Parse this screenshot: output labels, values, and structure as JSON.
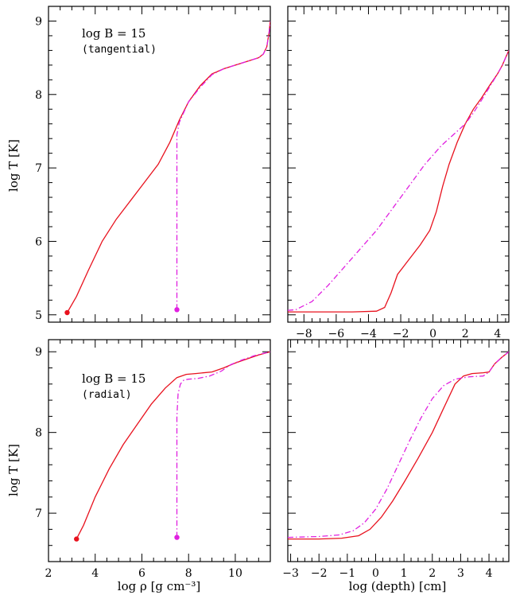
{
  "colors": {
    "solid": "#e8121e",
    "dashdot": "#e020e0",
    "frame": "#000000"
  },
  "chart_data": [
    {
      "id": "top-left",
      "type": "line",
      "xlim": [
        2,
        11.5
      ],
      "ylim": [
        4.9,
        9.2
      ],
      "xticks": [
        2,
        4,
        6,
        8,
        10
      ],
      "xticks_labelled": false,
      "yticks": [
        5,
        6,
        7,
        8,
        9
      ],
      "yticks_labelled": true,
      "ylabel": "log T [K]",
      "xlabel": "",
      "annotations": [
        "log B = 15",
        "(tangential)"
      ],
      "series": [
        {
          "style": "solid",
          "x": [
            2.8,
            3.2,
            3.7,
            4.3,
            4.9,
            5.5,
            6.1,
            6.7,
            7.2,
            7.6,
            8.0,
            8.5,
            9.0,
            9.5,
            10.0,
            10.5,
            11.0,
            11.2,
            11.35,
            11.45,
            11.5
          ],
          "y": [
            5.03,
            5.25,
            5.6,
            6.0,
            6.3,
            6.55,
            6.8,
            7.05,
            7.35,
            7.65,
            7.9,
            8.12,
            8.28,
            8.35,
            8.4,
            8.45,
            8.5,
            8.55,
            8.65,
            8.85,
            9.0
          ]
        },
        {
          "style": "dashdot",
          "x": [
            7.5,
            7.5,
            7.6,
            8.0,
            8.5,
            9.0,
            9.5,
            10.0,
            10.5,
            11.0,
            11.2,
            11.35,
            11.45,
            11.5
          ],
          "y": [
            5.07,
            7.45,
            7.62,
            7.9,
            8.1,
            8.27,
            8.35,
            8.4,
            8.45,
            8.5,
            8.55,
            8.65,
            8.85,
            9.0
          ]
        }
      ],
      "markers": [
        {
          "x": 2.8,
          "y": 5.03,
          "style": "solid"
        },
        {
          "x": 7.5,
          "y": 5.07,
          "style": "dashdot"
        }
      ]
    },
    {
      "id": "top-right",
      "type": "line",
      "xlim": [
        -9,
        4.7
      ],
      "ylim": [
        4.9,
        9.2
      ],
      "xticks": [
        -8,
        -6,
        -4,
        -2,
        0,
        2,
        4
      ],
      "xticks_labelled": true,
      "yticks": [
        5,
        6,
        7,
        8,
        9
      ],
      "yticks_labelled": false,
      "xlabel": "",
      "ylabel": "",
      "series": [
        {
          "style": "solid",
          "x": [
            -9,
            -7,
            -5,
            -3.5,
            -3.0,
            -2.6,
            -2.2,
            -1.5,
            -0.8,
            -0.2,
            0.2,
            0.6,
            1.0,
            1.5,
            2.0,
            2.5,
            3.0,
            3.5,
            4.0,
            4.3,
            4.5,
            4.7
          ],
          "y": [
            5.04,
            5.04,
            5.04,
            5.05,
            5.1,
            5.3,
            5.55,
            5.75,
            5.95,
            6.15,
            6.4,
            6.75,
            7.05,
            7.35,
            7.6,
            7.8,
            7.95,
            8.12,
            8.28,
            8.4,
            8.5,
            8.6
          ]
        },
        {
          "style": "dashdot",
          "x": [
            -9,
            -8.5,
            -7.5,
            -6.5,
            -5.5,
            -4.5,
            -3.5,
            -2.5,
            -1.5,
            -0.5,
            0.5,
            1.0,
            1.5,
            2.0,
            2.5,
            3.0,
            3.5,
            4.0,
            4.3,
            4.5,
            4.7
          ],
          "y": [
            5.06,
            5.07,
            5.18,
            5.4,
            5.65,
            5.9,
            6.15,
            6.45,
            6.75,
            7.05,
            7.3,
            7.4,
            7.5,
            7.6,
            7.75,
            7.92,
            8.1,
            8.28,
            8.4,
            8.5,
            8.6
          ]
        }
      ]
    },
    {
      "id": "bottom-left",
      "type": "line",
      "xlim": [
        2,
        11.5
      ],
      "ylim": [
        6.4,
        9.15
      ],
      "xticks": [
        2,
        4,
        6,
        8,
        10
      ],
      "xticks_labelled": true,
      "yticks": [
        7,
        8,
        9
      ],
      "yticks_labelled": true,
      "xlabel": "log ρ [g cm⁻³]",
      "ylabel": "log T [K]",
      "annotations": [
        "log B = 15",
        "(radial)"
      ],
      "series": [
        {
          "style": "solid",
          "x": [
            3.2,
            3.5,
            4.0,
            4.6,
            5.2,
            5.8,
            6.4,
            7.0,
            7.5,
            7.9,
            8.3,
            9.0,
            9.5,
            10.0,
            10.5,
            11.0,
            11.5
          ],
          "y": [
            6.68,
            6.85,
            7.2,
            7.55,
            7.85,
            8.1,
            8.35,
            8.55,
            8.68,
            8.72,
            8.73,
            8.75,
            8.8,
            8.86,
            8.91,
            8.96,
            9.0
          ]
        },
        {
          "style": "dashdot",
          "x": [
            7.5,
            7.5,
            7.55,
            7.65,
            7.8,
            8.0,
            8.4,
            8.9,
            9.4,
            9.8,
            10.3,
            10.8,
            11.2,
            11.5
          ],
          "y": [
            6.7,
            8.2,
            8.48,
            8.6,
            8.65,
            8.66,
            8.67,
            8.7,
            8.76,
            8.84,
            8.9,
            8.95,
            8.98,
            9.0
          ]
        }
      ],
      "markers": [
        {
          "x": 3.2,
          "y": 6.68,
          "style": "solid"
        },
        {
          "x": 7.5,
          "y": 6.7,
          "style": "dashdot"
        }
      ]
    },
    {
      "id": "bottom-right",
      "type": "line",
      "xlim": [
        -3.1,
        4.7
      ],
      "ylim": [
        6.4,
        9.15
      ],
      "xticks": [
        -3,
        -2,
        -1,
        0,
        1,
        2,
        3,
        4
      ],
      "xticks_labelled": true,
      "yticks": [
        7,
        8,
        9
      ],
      "yticks_labelled": false,
      "xlabel": "log (depth) [cm]",
      "ylabel": "",
      "series": [
        {
          "style": "solid",
          "x": [
            -3.1,
            -2,
            -1.2,
            -0.6,
            -0.2,
            0.2,
            0.6,
            1.0,
            1.5,
            2.0,
            2.4,
            2.8,
            3.1,
            3.4,
            3.8,
            4.0,
            4.2,
            4.45,
            4.7
          ],
          "y": [
            6.68,
            6.68,
            6.69,
            6.72,
            6.8,
            6.95,
            7.15,
            7.38,
            7.68,
            8.0,
            8.3,
            8.6,
            8.7,
            8.73,
            8.74,
            8.75,
            8.85,
            8.93,
            9.0
          ]
        },
        {
          "style": "dashdot",
          "x": [
            -3.1,
            -2,
            -1.3,
            -0.8,
            -0.4,
            0.0,
            0.4,
            0.8,
            1.2,
            1.6,
            2.0,
            2.4,
            2.8,
            3.3,
            3.8,
            4.0,
            4.2,
            4.45,
            4.7
          ],
          "y": [
            6.7,
            6.71,
            6.73,
            6.78,
            6.88,
            7.05,
            7.3,
            7.6,
            7.9,
            8.18,
            8.42,
            8.58,
            8.66,
            8.69,
            8.7,
            8.75,
            8.85,
            8.93,
            9.0
          ]
        }
      ]
    }
  ]
}
